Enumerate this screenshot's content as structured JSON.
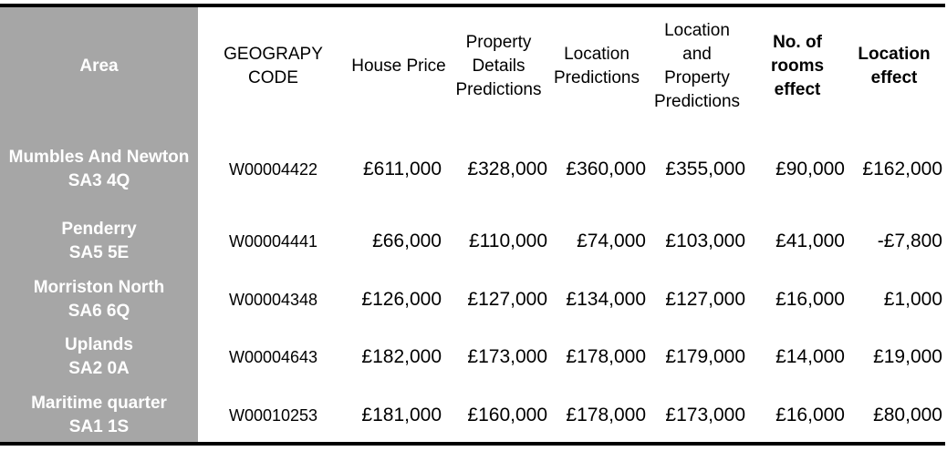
{
  "headers": {
    "area": "Area",
    "geography_code": "GEOGRAPY CODE",
    "house_price": "House Price",
    "property_details_predictions": "Property Details Predictions",
    "location_predictions": "Location Predictions",
    "location_and_property_predictions": "Location and Property Predictions",
    "no_of_rooms_effect": "No. of rooms effect",
    "location_effect": "Location effect"
  },
  "rows": [
    {
      "area_name": "Mumbles And Newton",
      "area_postcode": "SA3 4Q",
      "code": "W00004422",
      "house_price": "£611,000",
      "property_details": "£328,000",
      "location": "£360,000",
      "location_property": "£355,000",
      "rooms_effect": "£90,000",
      "location_effect": "£162,000"
    },
    {
      "area_name": "Penderry",
      "area_postcode": "SA5 5E",
      "code": "W00004441",
      "house_price": "£66,000",
      "property_details": "£110,000",
      "location": "£74,000",
      "location_property": "£103,000",
      "rooms_effect": "£41,000",
      "location_effect": "-£7,800"
    },
    {
      "area_name": "Morriston North",
      "area_postcode": "SA6 6Q",
      "code": "W00004348",
      "house_price": "£126,000",
      "property_details": "£127,000",
      "location": "£134,000",
      "location_property": "£127,000",
      "rooms_effect": "£16,000",
      "location_effect": "£1,000"
    },
    {
      "area_name": "Uplands",
      "area_postcode": "SA2 0A",
      "code": "W00004643",
      "house_price": "£182,000",
      "property_details": "£173,000",
      "location": "£178,000",
      "location_property": "£179,000",
      "rooms_effect": "£14,000",
      "location_effect": "£19,000"
    },
    {
      "area_name": "Maritime quarter",
      "area_postcode": "SA1 1S",
      "code": "W00010253",
      "house_price": "£181,000",
      "property_details": "£160,000",
      "location": "£178,000",
      "location_property": "£173,000",
      "rooms_effect": "£16,000",
      "location_effect": "£80,000"
    }
  ]
}
